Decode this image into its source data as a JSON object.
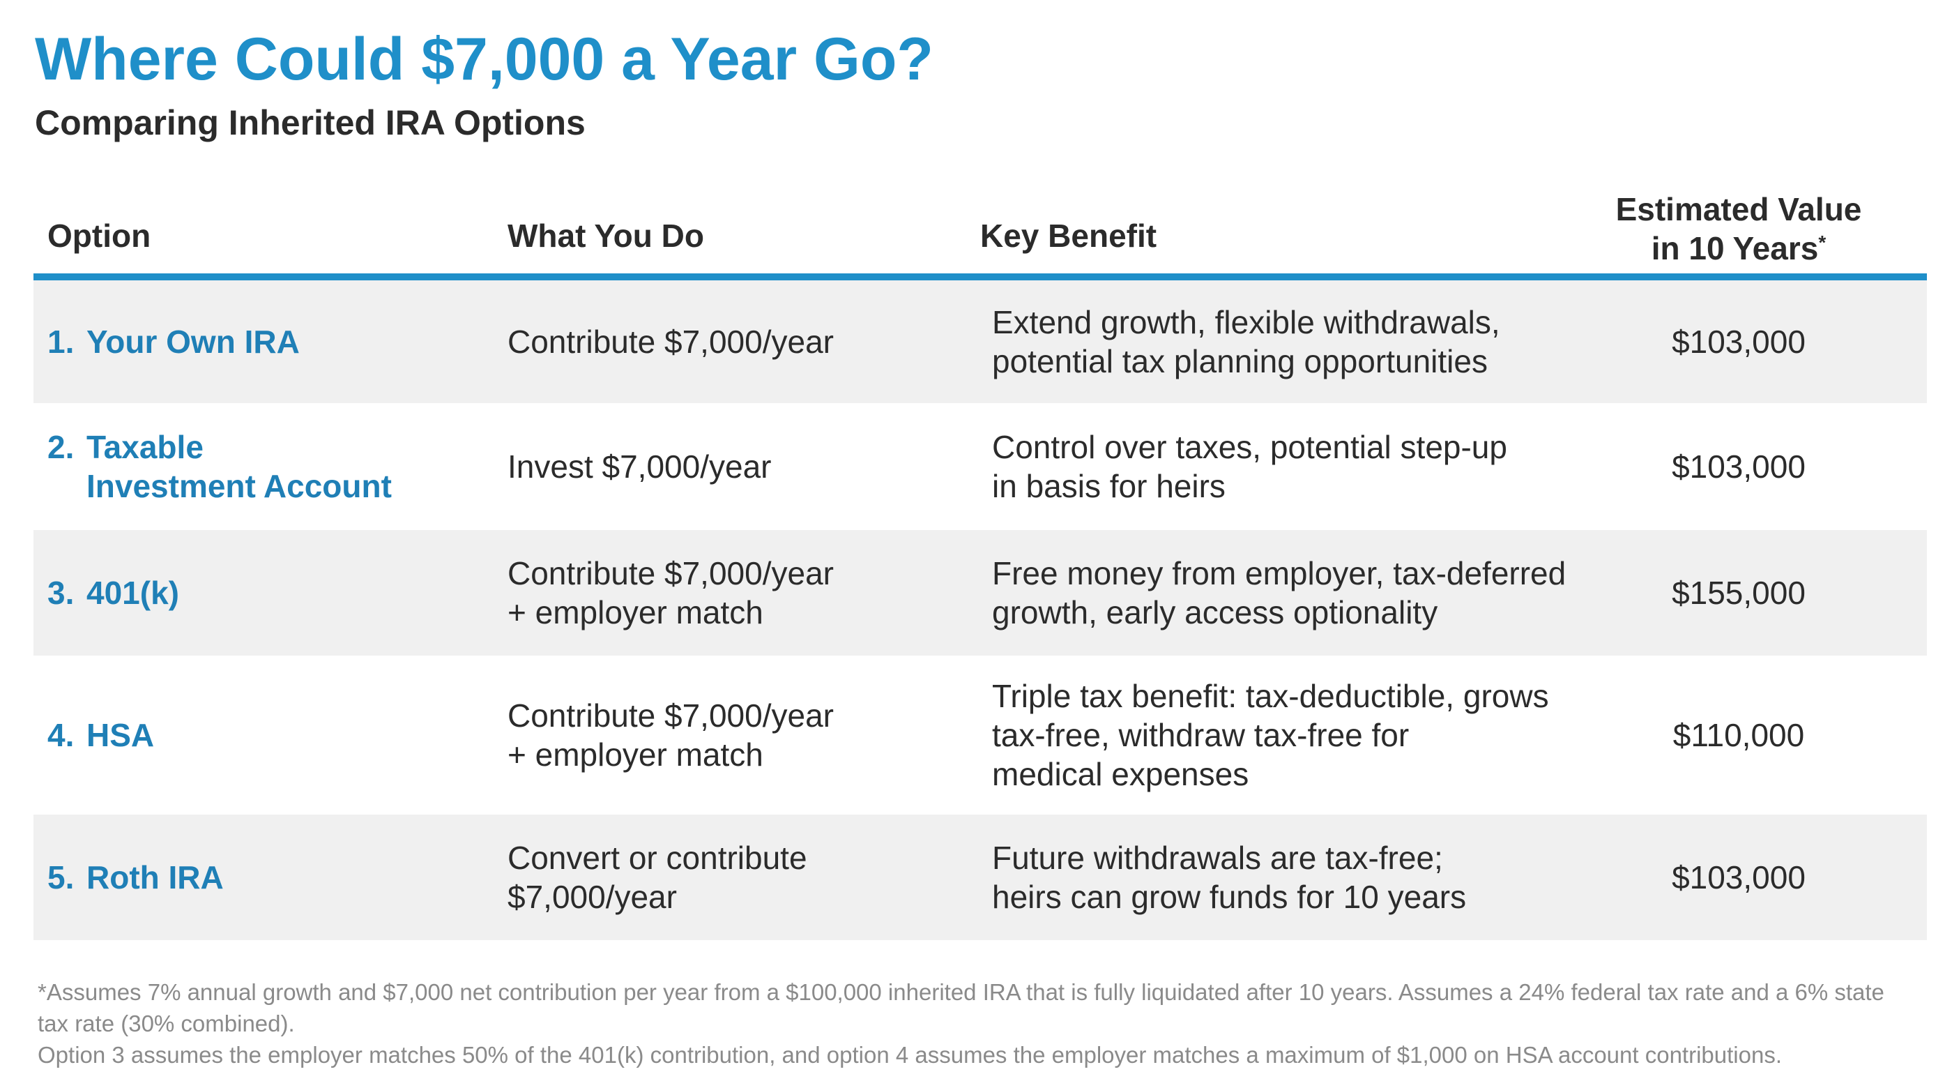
{
  "title": "Where Could $7,000 a Year Go?",
  "subtitle": "Comparing Inherited IRA Options",
  "colors": {
    "accent": "#1f8fc9",
    "option_text": "#1f7fb6",
    "row_shade": "#f0f0f0",
    "footnote": "#8a8a8a"
  },
  "table": {
    "headers": {
      "option": "Option",
      "what": "What You Do",
      "benefit": "Key Benefit",
      "value_line1": "Estimated Value",
      "value_line2": "in 10 Years",
      "value_marker": "*"
    },
    "rows": [
      {
        "number": "1.",
        "name_lines": [
          "Your Own IRA"
        ],
        "what_lines": [
          "Contribute $7,000/year"
        ],
        "benefit_lines": [
          "Extend growth, flexible withdrawals,",
          "potential tax planning opportunities"
        ],
        "value": "$103,000"
      },
      {
        "number": "2.",
        "name_lines": [
          "Taxable",
          "Investment Account"
        ],
        "what_lines": [
          "Invest $7,000/year"
        ],
        "benefit_lines": [
          "Control over taxes, potential step-up",
          "in basis for heirs"
        ],
        "value": "$103,000"
      },
      {
        "number": "3.",
        "name_lines": [
          "401(k)"
        ],
        "what_lines": [
          "Contribute $7,000/year",
          "+ employer match"
        ],
        "benefit_lines": [
          "Free money from employer, tax-deferred",
          "growth, early access optionality"
        ],
        "value": "$155,000"
      },
      {
        "number": "4.",
        "name_lines": [
          "HSA"
        ],
        "what_lines": [
          "Contribute $7,000/year",
          "+ employer match"
        ],
        "benefit_lines": [
          "Triple tax benefit: tax-deductible, grows",
          "tax-free, withdraw tax-free for",
          "medical expenses"
        ],
        "value": "$110,000"
      },
      {
        "number": "5.",
        "name_lines": [
          "Roth IRA"
        ],
        "what_lines": [
          "Convert or contribute",
          "$7,000/year"
        ],
        "benefit_lines": [
          "Future withdrawals are tax-free;",
          "heirs can grow funds for 10 years"
        ],
        "value": "$103,000"
      }
    ]
  },
  "footnote": {
    "line1": "*Assumes 7% annual growth and $7,000 net contribution per year from a $100,000 inherited IRA that is fully liquidated after 10 years. Assumes a 24% federal tax rate and a 6% state tax rate (30% combined).",
    "line2": "Option 3 assumes the employer matches 50% of the 401(k) contribution, and option 4 assumes the employer matches a maximum of $1,000 on HSA account contributions."
  }
}
